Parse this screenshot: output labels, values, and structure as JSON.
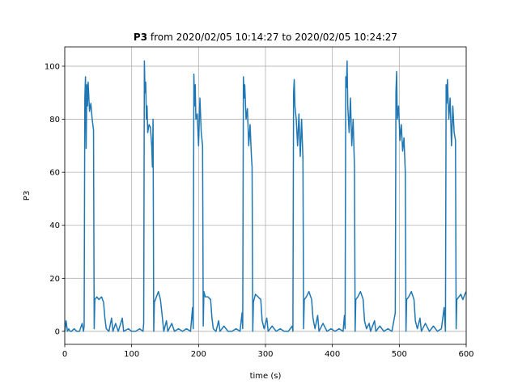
{
  "chart_data": {
    "type": "line",
    "title": {
      "bold": "P3",
      "rest": "from 2020/02/05 10:14:27 to 2020/02/05 10:24:27"
    },
    "x_label": "time (s)",
    "y_label": "P3",
    "x": [
      0,
      2,
      4,
      6,
      8,
      10,
      14,
      18,
      22,
      26,
      28,
      29,
      30,
      31,
      32,
      33,
      34,
      35,
      37,
      39,
      41,
      43,
      44,
      45,
      48,
      51,
      55,
      58,
      60,
      62,
      66,
      70,
      72,
      76,
      80,
      86,
      88,
      95,
      100,
      106,
      112,
      117,
      118,
      119,
      120,
      121,
      122,
      123,
      124,
      126,
      128,
      130,
      131,
      132,
      133,
      134,
      137,
      140,
      143,
      146,
      148,
      152,
      154,
      160,
      164,
      170,
      176,
      182,
      188,
      191,
      192,
      193,
      194,
      195,
      196,
      198,
      200,
      202,
      204,
      206,
      207,
      208,
      210,
      214,
      218,
      220,
      222,
      226,
      230,
      232,
      238,
      244,
      250,
      256,
      262,
      265,
      266,
      267,
      268,
      269,
      271,
      273,
      275,
      277,
      279,
      280,
      281,
      282,
      285,
      289,
      293,
      295,
      298,
      302,
      304,
      310,
      316,
      322,
      328,
      334,
      340,
      341,
      342,
      343,
      344,
      346,
      348,
      350,
      352,
      354,
      356,
      357,
      358,
      361,
      365,
      369,
      371,
      374,
      378,
      380,
      386,
      392,
      398,
      404,
      410,
      416,
      418,
      419,
      420,
      421,
      422,
      423,
      425,
      427,
      429,
      431,
      433,
      434,
      435,
      438,
      442,
      446,
      448,
      451,
      455,
      457,
      463,
      465,
      471,
      477,
      483,
      489,
      494,
      495,
      496,
      497,
      499,
      501,
      503,
      505,
      507,
      509,
      510,
      511,
      514,
      518,
      522,
      524,
      527,
      531,
      533,
      539,
      545,
      551,
      557,
      563,
      567,
      569,
      570,
      571,
      572,
      574,
      576,
      578,
      580,
      582,
      584,
      585,
      586,
      589,
      592,
      595,
      598,
      600
    ],
    "series": [
      {
        "name": "P3",
        "color": "#1f77b4",
        "values": [
          0,
          4,
          0,
          1,
          0,
          0,
          1,
          0,
          0,
          3,
          0,
          2,
          88,
          96,
          69,
          93,
          85,
          94,
          83,
          86,
          80,
          76,
          1,
          12,
          13,
          12,
          13,
          11,
          5,
          1,
          0,
          5,
          0,
          3,
          0,
          5,
          0,
          1,
          0,
          0,
          1,
          0,
          3,
          102,
          90,
          94,
          80,
          85,
          75,
          78,
          77,
          70,
          62,
          80,
          0,
          11,
          13,
          15,
          12,
          5,
          0,
          4,
          0,
          3,
          0,
          1,
          0,
          1,
          0,
          9,
          1,
          97,
          85,
          93,
          80,
          82,
          70,
          88,
          75,
          70,
          2,
          15,
          13,
          13,
          12,
          5,
          1,
          0,
          4,
          0,
          2,
          0,
          0,
          1,
          0,
          7,
          1,
          96,
          88,
          93,
          80,
          84,
          70,
          78,
          66,
          62,
          0,
          11,
          14,
          13,
          12,
          4,
          1,
          5,
          0,
          2,
          0,
          1,
          0,
          0,
          2,
          0,
          90,
          95,
          85,
          80,
          70,
          82,
          66,
          80,
          65,
          1,
          12,
          13,
          15,
          12,
          5,
          1,
          6,
          0,
          3,
          0,
          1,
          0,
          1,
          0,
          6,
          1,
          96,
          92,
          102,
          85,
          75,
          88,
          70,
          80,
          62,
          0,
          12,
          13,
          15,
          12,
          4,
          1,
          3,
          0,
          4,
          0,
          2,
          0,
          1,
          0,
          7,
          90,
          98,
          80,
          85,
          72,
          78,
          68,
          73,
          60,
          0,
          12,
          13,
          15,
          12,
          4,
          1,
          5,
          0,
          3,
          0,
          2,
          0,
          1,
          9,
          0,
          93,
          86,
          95,
          80,
          88,
          70,
          85,
          75,
          72,
          1,
          12,
          13,
          14,
          12,
          14,
          15
        ]
      }
    ],
    "xlim": [
      0,
      600
    ],
    "xticks": [
      0,
      100,
      200,
      300,
      400,
      500,
      600
    ],
    "ylim": [
      -4.9,
      107.3
    ],
    "yticks": [
      0,
      20,
      40,
      60,
      80,
      100
    ],
    "grid": true
  }
}
